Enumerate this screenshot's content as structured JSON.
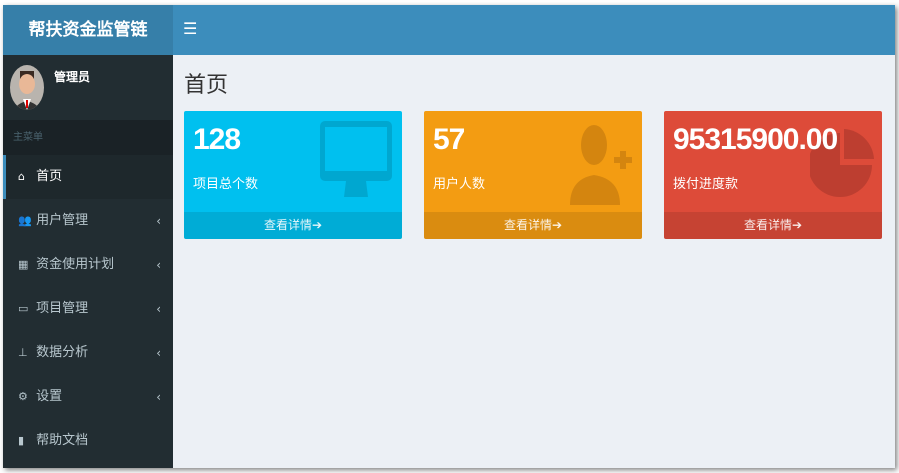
{
  "app": {
    "title": "帮扶资金监管链"
  },
  "header": {
    "toggle_icon": "bars-icon"
  },
  "user": {
    "name": "管理员"
  },
  "sidebar": {
    "header": "主菜单",
    "items": [
      {
        "label": "首页",
        "icon": "home-icon",
        "active": true
      },
      {
        "label": "用户管理",
        "icon": "users-icon"
      },
      {
        "label": "资金使用计划",
        "icon": "calculator-icon"
      },
      {
        "label": "项目管理",
        "icon": "desktop-icon"
      },
      {
        "label": "数据分析",
        "icon": "sitemap-icon"
      },
      {
        "label": "设置",
        "icon": "gear-icon"
      },
      {
        "label": "帮助文档",
        "icon": "file-icon"
      }
    ]
  },
  "page": {
    "title": "首页"
  },
  "boxes": [
    {
      "value": "128",
      "label": "项目总个数",
      "link": "查看详情",
      "color": "#00c0ef"
    },
    {
      "value": "57",
      "label": "用户人数",
      "link": "查看详情",
      "color": "#f39c12"
    },
    {
      "value": "95315900.00",
      "label": "拨付进度款",
      "link": "查看详情",
      "color": "#dd4b39"
    }
  ]
}
